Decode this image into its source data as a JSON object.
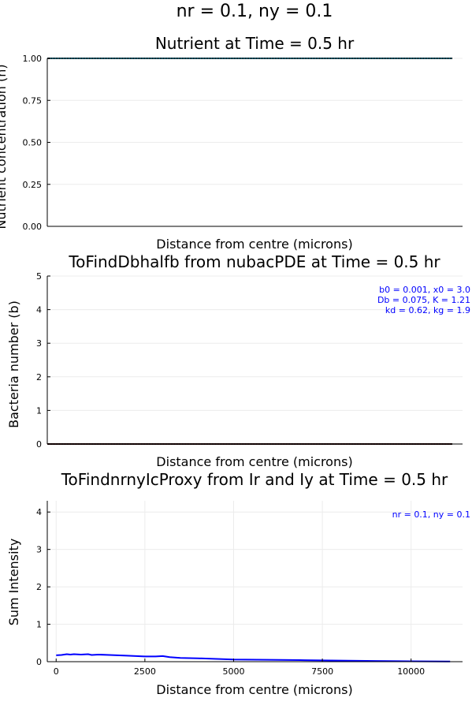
{
  "figure": {
    "suptitle": "nr = 0.1, ny = 0.1"
  },
  "colors": {
    "nutrient_line": "#1f8fb0",
    "bacteria_line": "#8b1a1a",
    "intensity_line": "#0000ff",
    "annotation": "#0000ff",
    "grid": "#ececec",
    "axis": "#000000"
  },
  "chart_data": [
    {
      "type": "line",
      "title": "Nutrient at Time = 0.5 hr",
      "xlabel": "Distance from centre (microns)",
      "ylabel": "Nutrient concentration (n)",
      "ylim": [
        0,
        1
      ],
      "yticks": [
        "0.00",
        "0.25",
        "0.50",
        "0.75",
        "1.00"
      ],
      "yticks_values": [
        0,
        0.25,
        0.5,
        0.75,
        1.0
      ],
      "xlim": [
        0,
        11200
      ],
      "x_ticks_shown": false,
      "grid": true,
      "legend": "none",
      "series": [
        {
          "x": [
            0,
            11200
          ],
          "y": [
            1.0,
            1.0
          ]
        }
      ]
    },
    {
      "type": "line",
      "title": "ToFindDbhalfb from nubacPDE at Time = 0.5 hr",
      "xlabel": "Distance from centre (microns)",
      "ylabel": "Bacteria number (b)",
      "ylim": [
        0,
        5
      ],
      "yticks": [
        "0",
        "1",
        "2",
        "3",
        "4",
        "5"
      ],
      "yticks_values": [
        0,
        1,
        2,
        3,
        4,
        5
      ],
      "xlim": [
        0,
        11200
      ],
      "x_ticks_shown": false,
      "grid": true,
      "legend": "none",
      "annotation": [
        "b0 = 0.001, x0 = 3.0",
        "Db = 0.075, K = 1.21",
        "kd = 0.62, kg = 1.9"
      ],
      "series": [
        {
          "x": [
            0,
            11200
          ],
          "y": [
            0.001,
            0.001
          ]
        }
      ]
    },
    {
      "type": "line",
      "title": "ToFindnrnyIcProxy from Ir and Iy at Time = 0.5 hr",
      "xlabel": "Distance from centre (microns)",
      "ylabel": "Sum Intensity",
      "ylim": [
        0,
        4.3
      ],
      "yticks": [
        "0",
        "1",
        "2",
        "3",
        "4"
      ],
      "yticks_values": [
        0,
        1,
        2,
        3,
        4
      ],
      "xlim": [
        -250,
        11450
      ],
      "xticks": [
        "0",
        "2500",
        "5000",
        "7500",
        "10000"
      ],
      "xticks_values": [
        0,
        2500,
        5000,
        7500,
        10000
      ],
      "grid": true,
      "legend": "none",
      "annotation": [
        "nr = 0.1, ny = 0.1"
      ],
      "series": [
        {
          "x": [
            0,
            150,
            300,
            400,
            500,
            700,
            900,
            1000,
            1200,
            1500,
            2000,
            2500,
            2800,
            3000,
            3200,
            3500,
            4000,
            5000,
            6000,
            7000,
            8000,
            9000,
            10000,
            11000,
            11100
          ],
          "y": [
            0.17,
            0.18,
            0.2,
            0.19,
            0.2,
            0.19,
            0.2,
            0.18,
            0.19,
            0.18,
            0.16,
            0.14,
            0.14,
            0.15,
            0.12,
            0.1,
            0.09,
            0.06,
            0.05,
            0.04,
            0.03,
            0.02,
            0.01,
            0.005,
            0.005
          ]
        }
      ]
    }
  ]
}
